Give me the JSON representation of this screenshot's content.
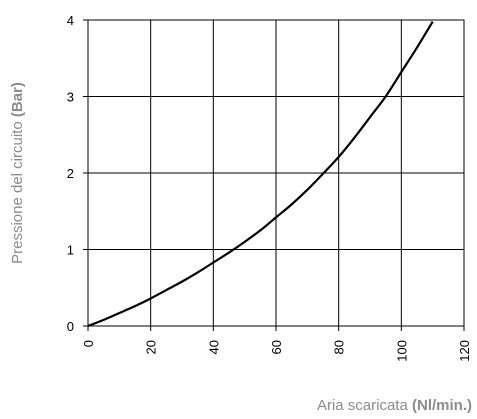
{
  "chart_data": {
    "type": "line",
    "xlabel": {
      "plain": "Aria scaricata ",
      "bold": "(Nl/min.)"
    },
    "ylabel": {
      "plain": "Pressione del circuito ",
      "bold": "(Bar)"
    },
    "xlim": [
      0,
      120
    ],
    "ylim": [
      0,
      4
    ],
    "x_ticks": [
      0,
      20,
      40,
      60,
      80,
      100,
      120
    ],
    "y_ticks": [
      0,
      1,
      2,
      3,
      4
    ],
    "grid": true,
    "series": [
      {
        "x": [
          0,
          5,
          10,
          15,
          20,
          25,
          30,
          35,
          40,
          45,
          50,
          55,
          60,
          65,
          70,
          75,
          80,
          85,
          90,
          95,
          100,
          105,
          110
        ],
        "y": [
          0,
          0.08,
          0.17,
          0.26,
          0.36,
          0.47,
          0.58,
          0.7,
          0.83,
          0.96,
          1.1,
          1.25,
          1.42,
          1.59,
          1.78,
          1.99,
          2.21,
          2.46,
          2.73,
          3.0,
          3.32,
          3.64,
          3.98
        ],
        "color": "#000000"
      }
    ]
  }
}
